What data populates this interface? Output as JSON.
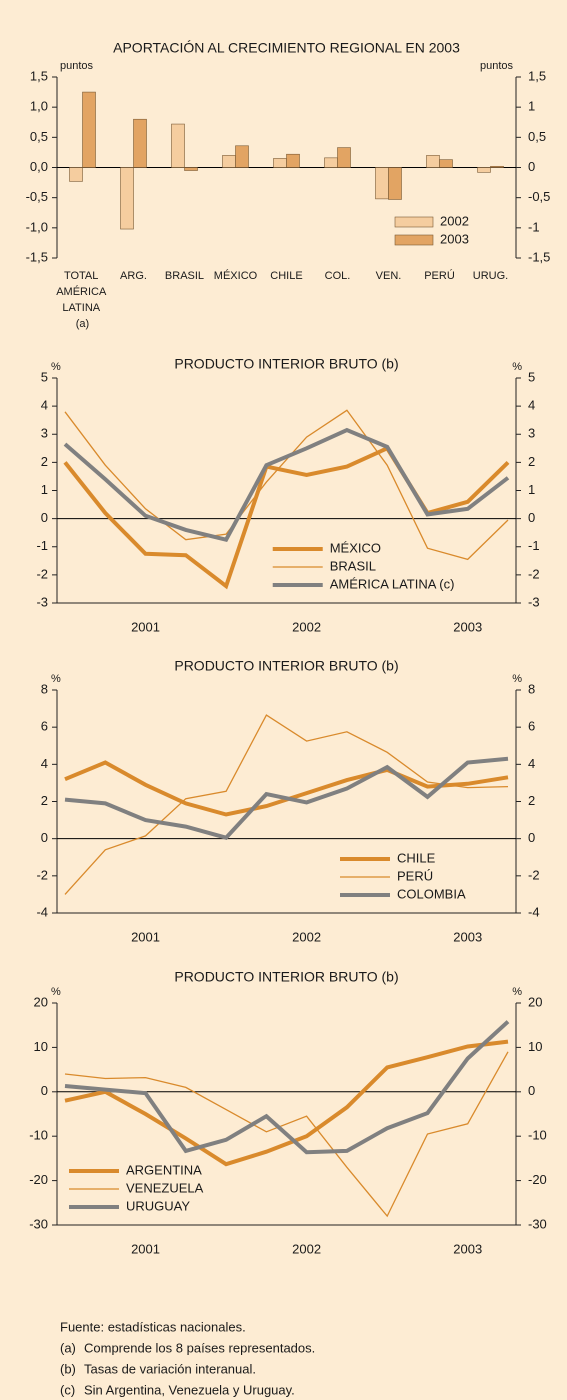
{
  "chart_data": [
    {
      "type": "bar",
      "title": "APORTACIÓN AL CRECIMIENTO REGIONAL EN 2003",
      "ylabel": "puntos",
      "y2label": "puntos",
      "categories": [
        "TOTAL AMÉRICA LATINA (a)",
        "ARG.",
        "BRASIL",
        "MÉXICO",
        "CHILE",
        "COL.",
        "VEN.",
        "PERÚ",
        "URUG."
      ],
      "series": [
        {
          "name": "2002",
          "color": "#f5cd9f",
          "values": [
            -0.23,
            -1.02,
            0.72,
            0.2,
            0.15,
            0.16,
            -0.52,
            0.2,
            -0.08
          ]
        },
        {
          "name": "2003",
          "color": "#e2a463",
          "values": [
            1.25,
            0.8,
            -0.05,
            0.36,
            0.22,
            0.33,
            -0.53,
            0.13,
            0.02
          ]
        }
      ],
      "ylim": [
        -1.5,
        1.5
      ],
      "yticks": [
        {
          "value": -1.5,
          "label": "-1,5"
        },
        {
          "value": -1,
          "label": "-1,0"
        },
        {
          "value": -0.5,
          "label": "-0,5"
        },
        {
          "value": 0,
          "label": "0,0"
        },
        {
          "value": 0.5,
          "label": "0,5"
        },
        {
          "value": 1,
          "label": "1,0"
        },
        {
          "value": 1.5,
          "label": "1,5"
        }
      ],
      "y2lim": [
        -1.5,
        1.5
      ],
      "y2ticks": [
        {
          "value": -1.5,
          "label": "-1,5"
        },
        -1,
        {
          "value": -0.5,
          "label": "-0,5"
        },
        0,
        {
          "value": 0.5,
          "label": "0,5"
        },
        1,
        {
          "value": 1.5,
          "label": "1,5"
        }
      ],
      "zero_line": true,
      "legend_position": "lower right"
    },
    {
      "type": "line",
      "title": "PRODUCTO INTERIOR BRUTO (b)",
      "ylabel": "%",
      "y2label": "%",
      "categories": [
        null,
        null,
        "2001",
        null,
        null,
        null,
        "2002",
        null,
        null,
        null,
        "2003",
        null
      ],
      "series": [
        {
          "name": "MÉXICO",
          "color": "#d98a2c",
          "width": 4,
          "values": [
            2.0,
            0.2,
            -1.25,
            -1.3,
            -2.4,
            1.85,
            1.55,
            1.85,
            2.5,
            0.2,
            0.6,
            2.0
          ]
        },
        {
          "name": "BRASIL",
          "color": "#d98a2c",
          "width": 1.3,
          "values": [
            3.8,
            1.9,
            0.35,
            -0.75,
            -0.55,
            1.3,
            2.9,
            3.85,
            1.9,
            -1.05,
            -1.45,
            -0.05
          ]
        },
        {
          "name": "AMÉRICA LATINA (c)",
          "color": "#808080",
          "width": 4,
          "values": [
            2.65,
            1.4,
            0.1,
            -0.4,
            -0.75,
            1.9,
            2.5,
            3.15,
            2.55,
            0.15,
            0.35,
            1.45
          ]
        }
      ],
      "ylim": [
        -3,
        5
      ],
      "yticks": [
        -3,
        -2,
        -1,
        0,
        1,
        2,
        3,
        4,
        5
      ],
      "y2lim": [
        -3,
        5
      ],
      "y2ticks": [
        -3,
        -2,
        -1,
        0,
        1,
        2,
        3,
        4,
        5
      ],
      "zero_line": true,
      "legend_position": "lower center"
    },
    {
      "type": "line",
      "title": "PRODUCTO INTERIOR BRUTO (b)",
      "ylabel": "%",
      "y2label": "%",
      "categories": [
        null,
        null,
        "2001",
        null,
        null,
        null,
        "2002",
        null,
        null,
        null,
        "2003",
        null
      ],
      "series": [
        {
          "name": "CHILE",
          "color": "#d98a2c",
          "width": 4,
          "values": [
            3.2,
            4.1,
            2.9,
            1.9,
            1.3,
            1.75,
            2.45,
            3.15,
            3.7,
            2.8,
            2.95,
            3.3
          ]
        },
        {
          "name": "PERÚ",
          "color": "#d98a2c",
          "width": 1.3,
          "values": [
            -3.0,
            -0.6,
            0.15,
            2.15,
            2.55,
            6.65,
            5.25,
            5.75,
            4.65,
            3.05,
            2.75,
            2.8
          ]
        },
        {
          "name": "COLOMBIA",
          "color": "#808080",
          "width": 4,
          "values": [
            2.1,
            1.9,
            1.0,
            0.65,
            0.05,
            2.4,
            1.95,
            2.7,
            3.85,
            2.25,
            4.1,
            4.3
          ]
        }
      ],
      "ylim": [
        -4,
        8
      ],
      "yticks": [
        -4,
        -2,
        0,
        2,
        4,
        6,
        8
      ],
      "y2lim": [
        -4,
        8
      ],
      "y2ticks": [
        -4,
        -2,
        0,
        2,
        4,
        6,
        8
      ],
      "zero_line": true,
      "legend_position": "lower right"
    },
    {
      "type": "line",
      "title": "PRODUCTO INTERIOR BRUTO (b)",
      "ylabel": "%",
      "y2label": "%",
      "categories": [
        null,
        null,
        "2001",
        null,
        null,
        null,
        "2002",
        null,
        null,
        null,
        "2003",
        null
      ],
      "series": [
        {
          "name": "ARGENTINA",
          "color": "#d98a2c",
          "width": 4,
          "values": [
            -2,
            0,
            -5,
            -10.5,
            -16.3,
            -13.5,
            -10,
            -3.5,
            5.5,
            7.8,
            10.2,
            11.3
          ]
        },
        {
          "name": "VENEZUELA",
          "color": "#d98a2c",
          "width": 1.3,
          "values": [
            4,
            3,
            3.2,
            1,
            -4,
            -9,
            -5.5,
            -17,
            -28,
            -9.5,
            -7.2,
            9
          ]
        },
        {
          "name": "URUGUAY",
          "color": "#808080",
          "width": 4,
          "values": [
            1.3,
            0.5,
            -0.3,
            -13.3,
            -10.8,
            -5.5,
            -13.6,
            -13.3,
            -8.2,
            -4.8,
            7.5,
            15.8
          ]
        }
      ],
      "ylim": [
        -30,
        20
      ],
      "yticks": [
        -30,
        -20,
        -10,
        0,
        10,
        20
      ],
      "y2lim": [
        -30,
        20
      ],
      "y2ticks": [
        -30,
        -20,
        -10,
        0,
        10,
        20
      ],
      "zero_line": true,
      "legend_position": "lower left"
    }
  ],
  "source": "Fuente: estadísticas nacionales.",
  "notes": [
    {
      "mark": "(a)",
      "text": "Comprende los 8 países representados."
    },
    {
      "mark": "(b)",
      "text": "Tasas de variación interanual."
    },
    {
      "mark": "(c)",
      "text": "Sin Argentina, Venezuela y Uruguay."
    }
  ]
}
